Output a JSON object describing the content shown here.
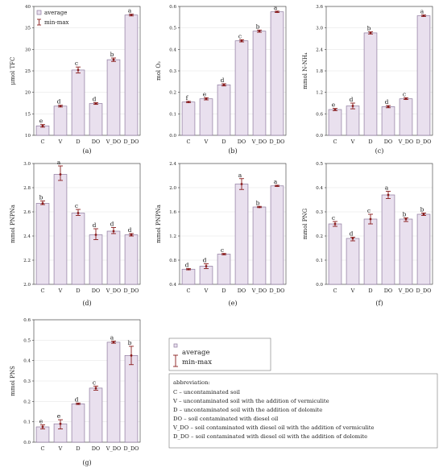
{
  "legend": {
    "average": "average",
    "minmax": "min-max"
  },
  "abbreviations": {
    "title": "abbreviation:",
    "items": [
      "C – uncontaminated soil",
      "V – uncontaminated soil with the addition of vermiculite",
      "D – uncontaminated soil with the addition of dolomite",
      "DO – soil contaminated with diesel oil",
      "V_DO – soil contaminated with diesel oil with the addition of vermiculite",
      "D_DO – soil contaminated with diesel oil with the addition of dolomite"
    ]
  },
  "chart_data": [
    {
      "id": "a",
      "type": "bar",
      "panel_label": "(a)",
      "ylabel": "μmol TFC",
      "categories": [
        "C",
        "V",
        "D",
        "DO",
        "V_DO",
        "D_DO"
      ],
      "ylim": [
        10,
        40
      ],
      "yticks": [
        "10",
        "15",
        "20",
        "25",
        "30",
        "35",
        "40"
      ],
      "values": [
        12.2,
        16.8,
        25.2,
        17.4,
        27.6,
        38.0
      ],
      "min": [
        11.9,
        16.6,
        24.5,
        17.2,
        27.2,
        37.8
      ],
      "max": [
        12.5,
        17.0,
        25.9,
        17.6,
        28.0,
        38.2
      ],
      "letters": [
        "e",
        "d",
        "c",
        "d",
        "b",
        "a"
      ],
      "legend": true
    },
    {
      "id": "b",
      "type": "bar",
      "panel_label": "(b)",
      "ylabel": "mol O₂",
      "categories": [
        "C",
        "V",
        "D",
        "DO",
        "V_DO",
        "D_DO"
      ],
      "ylim": [
        0,
        0.6
      ],
      "yticks": [
        "0.0",
        "0.1",
        "0.2",
        "0.3",
        "0.4",
        "0.5",
        "0.6"
      ],
      "values": [
        0.155,
        0.17,
        0.235,
        0.44,
        0.485,
        0.575
      ],
      "min": [
        0.152,
        0.165,
        0.23,
        0.435,
        0.48,
        0.572
      ],
      "max": [
        0.158,
        0.175,
        0.24,
        0.445,
        0.49,
        0.578
      ],
      "letters": [
        "f",
        "e",
        "d",
        "c",
        "b",
        "a"
      ]
    },
    {
      "id": "c",
      "type": "bar",
      "panel_label": "(c)",
      "ylabel": "mmol N-NH₄",
      "categories": [
        "C",
        "V",
        "D",
        "DO",
        "V_DO",
        "D_DO"
      ],
      "ylim": [
        0,
        3.6
      ],
      "yticks": [
        "0.0",
        "0.6",
        "1.2",
        "1.8",
        "2.4",
        "3.0",
        "3.6"
      ],
      "values": [
        0.72,
        0.82,
        2.86,
        0.8,
        1.02,
        3.34
      ],
      "min": [
        0.69,
        0.74,
        2.83,
        0.77,
        1.0,
        3.32
      ],
      "max": [
        0.75,
        0.9,
        2.89,
        0.83,
        1.05,
        3.36
      ],
      "letters": [
        "e",
        "d",
        "b",
        "d",
        "c",
        "a"
      ]
    },
    {
      "id": "d",
      "type": "bar",
      "panel_label": "(d)",
      "ylabel": "mmol PNPNa",
      "categories": [
        "C",
        "V",
        "D",
        "DO",
        "V_DO",
        "D_DO"
      ],
      "ylim": [
        2.0,
        3.0
      ],
      "yticks": [
        "2.0",
        "2.2",
        "2.4",
        "2.6",
        "2.8",
        "3.0"
      ],
      "values": [
        2.67,
        2.91,
        2.59,
        2.41,
        2.44,
        2.41
      ],
      "min": [
        2.66,
        2.86,
        2.57,
        2.37,
        2.42,
        2.4
      ],
      "max": [
        2.69,
        2.98,
        2.62,
        2.46,
        2.47,
        2.42
      ],
      "letters": [
        "b",
        "a",
        "c",
        "d",
        "d",
        "d"
      ]
    },
    {
      "id": "e",
      "type": "bar",
      "panel_label": "(e)",
      "ylabel": "mmol PNPNa",
      "categories": [
        "C",
        "V",
        "D",
        "DO",
        "V_DO",
        "D_DO"
      ],
      "ylim": [
        0.4,
        2.4
      ],
      "yticks": [
        "0.4",
        "0.8",
        "1.2",
        "1.6",
        "2.0",
        "2.4"
      ],
      "values": [
        0.65,
        0.7,
        0.9,
        2.06,
        1.68,
        2.03
      ],
      "min": [
        0.64,
        0.66,
        0.89,
        1.97,
        1.67,
        2.02
      ],
      "max": [
        0.66,
        0.74,
        0.91,
        2.15,
        1.69,
        2.04
      ],
      "letters": [
        "d",
        "d",
        "c",
        "a",
        "b",
        "a"
      ]
    },
    {
      "id": "f",
      "type": "bar",
      "panel_label": "(f)",
      "ylabel": "mmol PNG",
      "categories": [
        "C",
        "V",
        "D",
        "DO",
        "V_DO",
        "D_DO"
      ],
      "ylim": [
        0,
        0.5
      ],
      "yticks": [
        "0.0",
        "0.1",
        "0.2",
        "0.3",
        "0.4",
        "0.5"
      ],
      "values": [
        0.25,
        0.19,
        0.27,
        0.37,
        0.27,
        0.29
      ],
      "min": [
        0.24,
        0.18,
        0.25,
        0.355,
        0.26,
        0.285
      ],
      "max": [
        0.26,
        0.195,
        0.29,
        0.385,
        0.275,
        0.295
      ],
      "letters": [
        "c",
        "d",
        "c",
        "a",
        "b",
        "b"
      ]
    },
    {
      "id": "g",
      "type": "bar",
      "panel_label": "(g)",
      "ylabel": "mmol PNS",
      "categories": [
        "C",
        "V",
        "D",
        "DO",
        "V_DO",
        "D_DO"
      ],
      "ylim": [
        0,
        0.6
      ],
      "yticks": [
        "0.0",
        "0.1",
        "0.2",
        "0.3",
        "0.4",
        "0.5",
        "0.6"
      ],
      "values": [
        0.075,
        0.09,
        0.188,
        0.265,
        0.49,
        0.425
      ],
      "min": [
        0.065,
        0.065,
        0.185,
        0.255,
        0.485,
        0.38
      ],
      "max": [
        0.085,
        0.11,
        0.192,
        0.275,
        0.495,
        0.47
      ],
      "letters": [
        "e",
        "e",
        "d",
        "c",
        "a",
        "b"
      ]
    }
  ]
}
